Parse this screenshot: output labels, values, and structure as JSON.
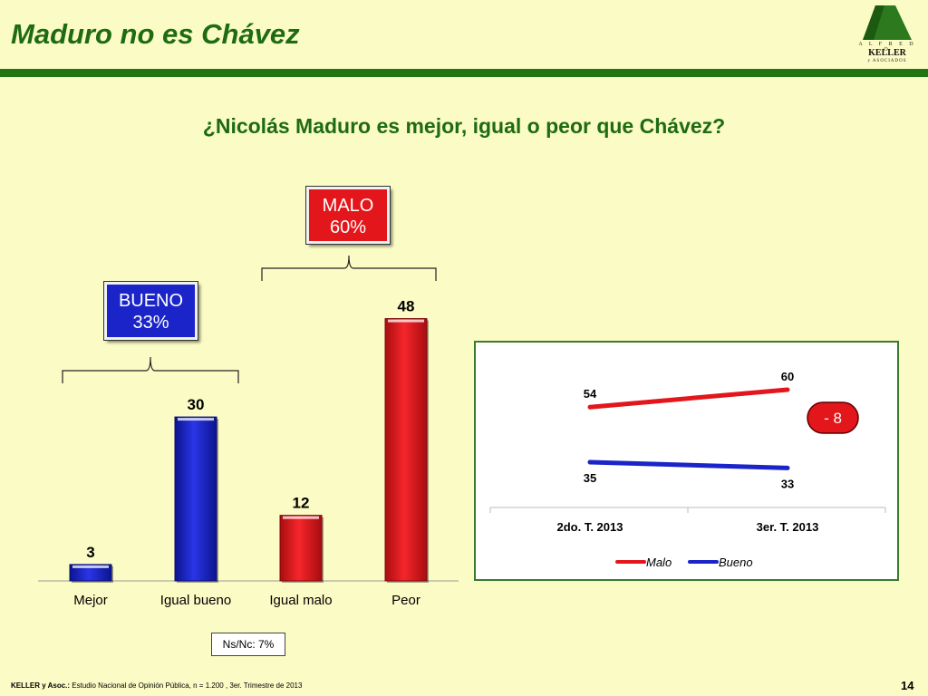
{
  "slide": {
    "title": "Maduro no es Chávez",
    "question": "¿Nicolás Maduro es mejor, igual o peor que Chávez?",
    "page_number": "14",
    "ns_nc": "Ns/Nc: 7%",
    "footer_source": "KELLER y Asoc.:",
    "footer_text": " Estudio Nacional de Opinión Pública, n = 1.200 , 3er. Trimestre de 2013"
  },
  "logo": {
    "top": "A L F R E D O",
    "name": "KELLER",
    "bottom": "y ASOCIADOS"
  },
  "badges": {
    "malo": {
      "label": "MALO",
      "value": "60%"
    },
    "bueno": {
      "label": "BUENO",
      "value": "33%"
    }
  },
  "colors": {
    "red": "#e3161b",
    "blue": "#1a24c9",
    "green": "#1e6b12",
    "background": "#fbfbc5"
  },
  "chart_data": [
    {
      "type": "bar",
      "categories": [
        "Mejor",
        "Igual bueno",
        "Igual malo",
        "Peor"
      ],
      "values": [
        3,
        30,
        12,
        48
      ],
      "bar_colors": [
        "#1a24c9",
        "#1a24c9",
        "#e3161b",
        "#e3161b"
      ],
      "ylim": [
        0,
        50
      ]
    },
    {
      "type": "line",
      "categories": [
        "2do. T. 2013",
        "3er. T. 2013"
      ],
      "series": [
        {
          "name": "Malo",
          "values": [
            54,
            60
          ],
          "color": "#e3161b"
        },
        {
          "name": "Bueno",
          "values": [
            35,
            33
          ],
          "color": "#1a24c9"
        }
      ],
      "ylim": [
        20,
        70
      ],
      "legend": "bottom",
      "annotation": "-  8"
    }
  ]
}
